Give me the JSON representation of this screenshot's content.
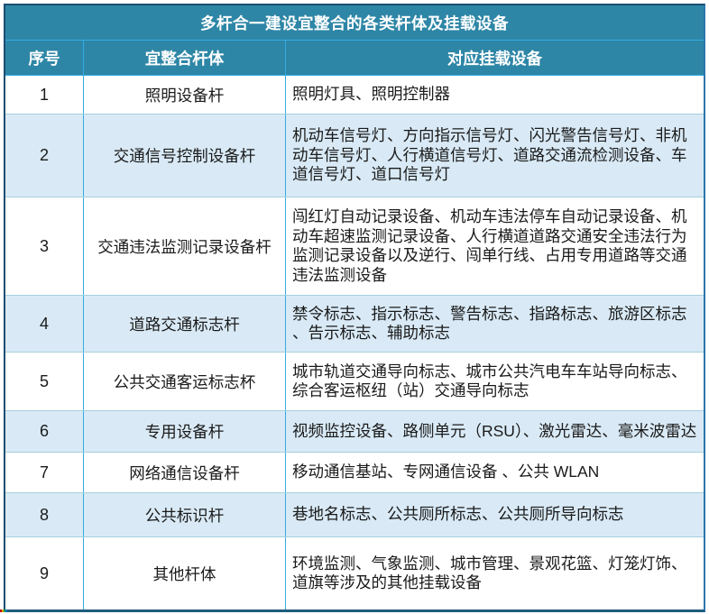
{
  "table": {
    "title": "多杆合一建设宜整合的各类杆体及挂载设备",
    "columns": [
      "序号",
      "宜整合杆体",
      "对应挂载设备"
    ],
    "rows": [
      {
        "no": "1",
        "pole": "照明设备杆",
        "devices": "照明灯具、照明控制器"
      },
      {
        "no": "2",
        "pole": "交通信号控制设备杆",
        "devices": "机动车信号灯、方向指示信号灯、闪光警告信号灯、非机动车信号灯、人行横道信号灯、道路交通流检测设备、车道信号灯、道口信号灯"
      },
      {
        "no": "3",
        "pole": "交通违法监测记录设备杆",
        "devices": "闯红灯自动记录设备、机动车违法停车自动记录设备、机动车超速监测记录设备、人行横道道路交通安全违法行为监测记录设备以及逆行、闯单行线、占用专用道路等交通违法监测设备"
      },
      {
        "no": "4",
        "pole": "道路交通标志杆",
        "devices": "禁令标志、指示标志、警告标志、指路标志、旅游区标志、告示标志、辅助标志"
      },
      {
        "no": "5",
        "pole": "公共交通客运标志杯",
        "devices": "城市轨道交通导向标志、城市公共汽电车车站导向标志、综合客运枢纽（站）交通导向标志"
      },
      {
        "no": "6",
        "pole": "专用设备杆",
        "devices": "视频监控设备、路侧单元（RSU）、激光雷达、毫米波雷达"
      },
      {
        "no": "7",
        "pole": "网络通信设备杆",
        "devices": "移动通信基站、专网通信设备 、公共 WLAN"
      },
      {
        "no": "8",
        "pole": "公共标识杆",
        "devices": "巷地名标志、公共厕所标志、公共厕所导向标志"
      },
      {
        "no": "9",
        "pole": "其他杆体",
        "devices": "环境监测、气象监测、城市管理、景观花篮、灯笼灯饰、道旗等涉及的其他挂载设备"
      }
    ]
  },
  "colors": {
    "header_bg": "#2e86a6",
    "alt_row_bg": "#d9eaf6",
    "grid_vertical": "#35ace0",
    "grid_horizontal": "#a6cfdc",
    "outer_border_dark": "#1c4e73",
    "outer_border_bottom": "#1e5d7b",
    "header_text": "#ffffff",
    "body_text": "#1a1a1a"
  }
}
